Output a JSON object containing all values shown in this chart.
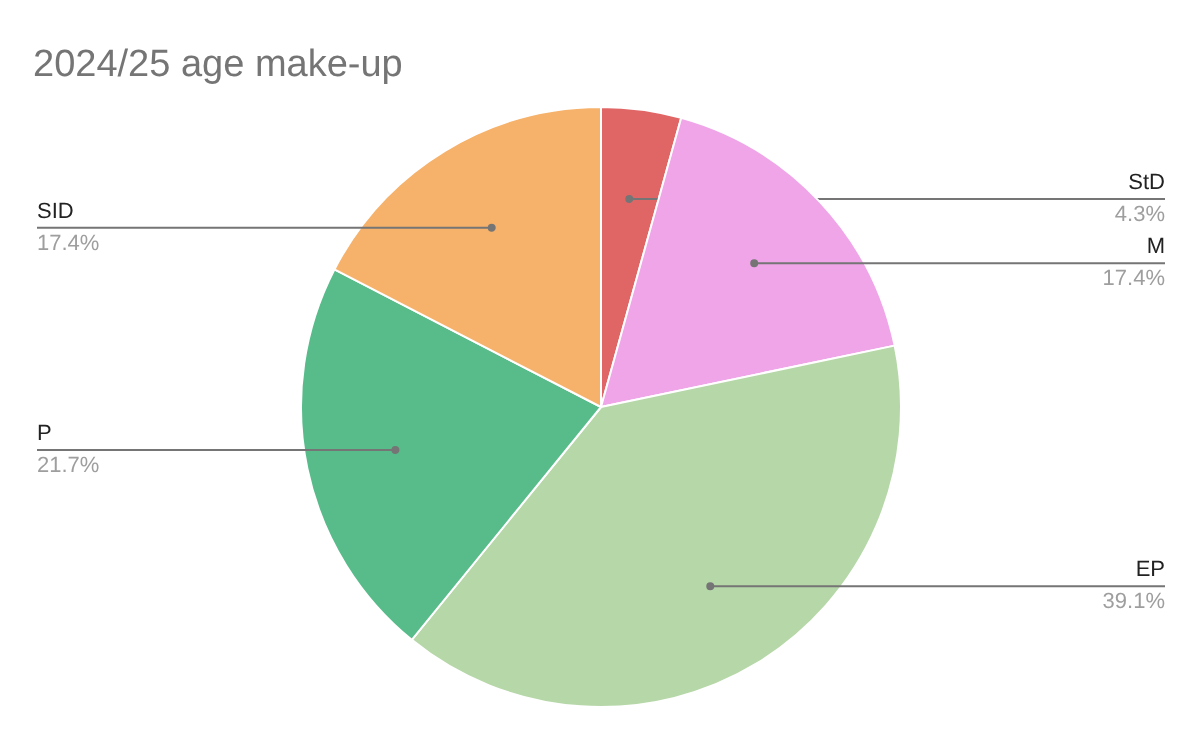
{
  "chart_data": {
    "type": "pie",
    "title": "2024/25 age make-up",
    "categories": [
      "StD",
      "M",
      "EP",
      "P",
      "SID"
    ],
    "values": [
      4.3,
      17.4,
      39.1,
      21.7,
      17.4
    ],
    "value_labels": [
      "4.3%",
      "17.4%",
      "39.1%",
      "21.7%",
      "17.4%"
    ],
    "colors": [
      "#e06666",
      "#efa5e8",
      "#b6d7a8",
      "#57bb8a",
      "#f6b26b"
    ]
  }
}
